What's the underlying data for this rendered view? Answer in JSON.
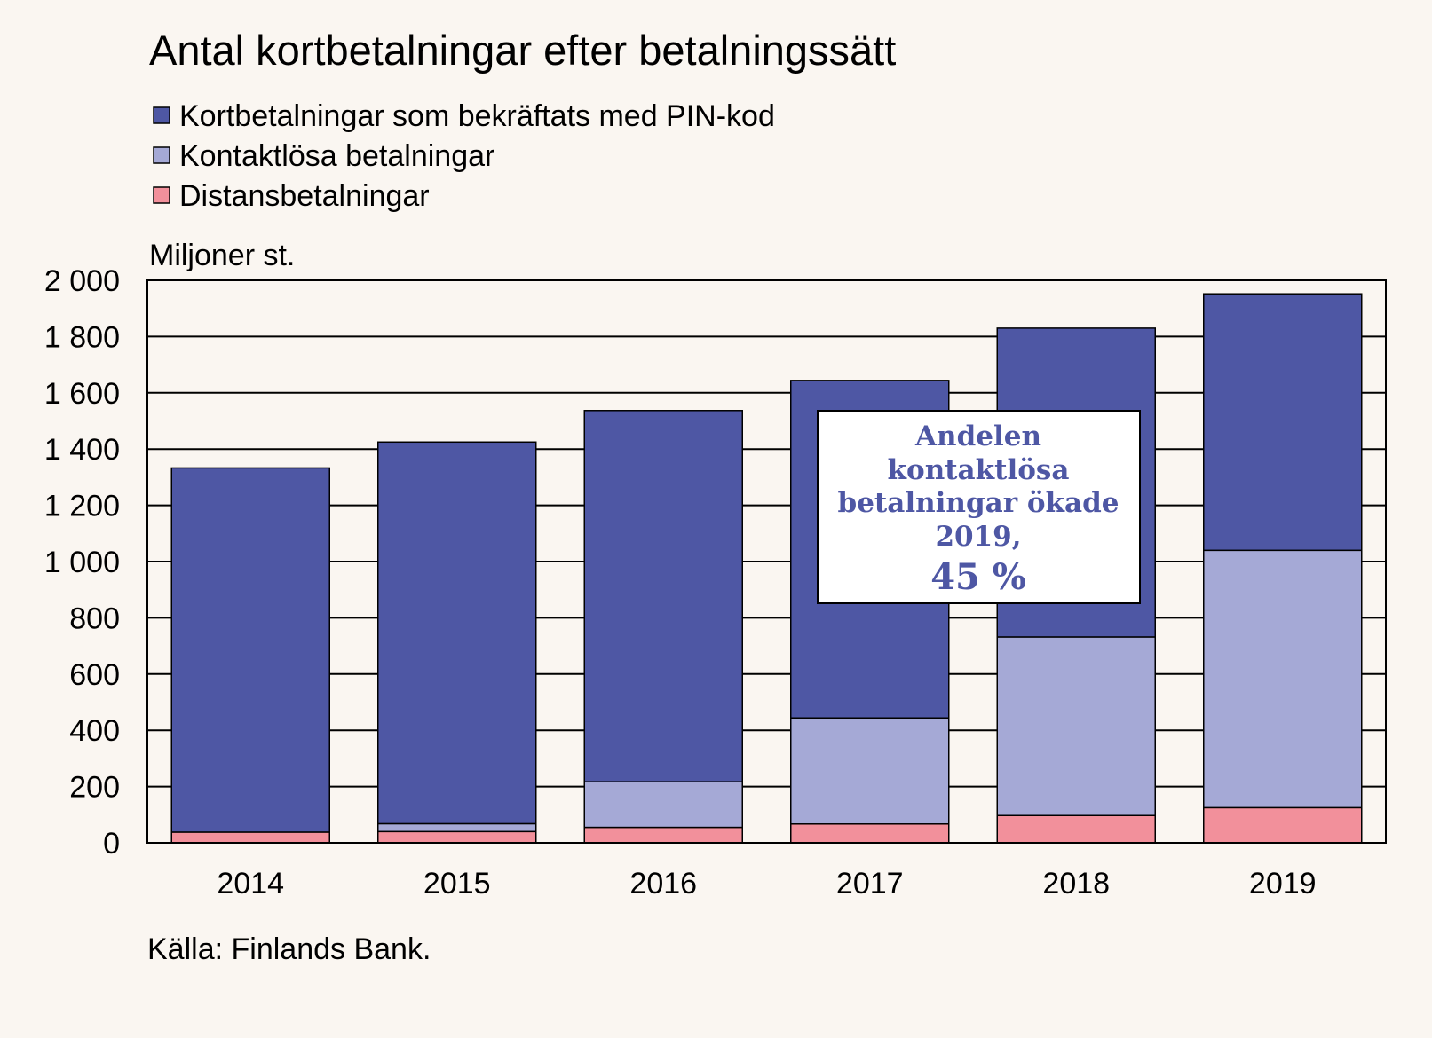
{
  "title": "Antal kortbetalningar efter betalningssätt",
  "unit_label": "Miljoner st.",
  "source": "Källa: Finlands Bank.",
  "colors": {
    "pin": "#4e57a4",
    "contactless": "#a5a9d6",
    "distance": "#f2909b",
    "background": "#faf6f1"
  },
  "chart_data": {
    "type": "bar",
    "stacked": true,
    "title": "Antal kortbetalningar efter betalningssätt",
    "ylabel": "Miljoner st.",
    "xlabel": "",
    "categories": [
      "2014",
      "2015",
      "2016",
      "2017",
      "2018",
      "2019"
    ],
    "series": [
      {
        "name": "Distansbetalningar",
        "color": "#f2909b",
        "values": [
          38,
          40,
          55,
          67,
          97,
          125
        ]
      },
      {
        "name": "Kontaktlösa betalningar",
        "color": "#a5a9d6",
        "values": [
          0,
          28,
          162,
          377,
          635,
          915
        ]
      },
      {
        "name": "Kortbetalningar som bekräftats med PIN-kod",
        "color": "#4e57a4",
        "values": [
          1295,
          1357,
          1320,
          1200,
          1098,
          912
        ]
      }
    ],
    "legend_order": [
      "Kortbetalningar som bekräftats med PIN-kod",
      "Kontaktlösa betalningar",
      "Distansbetalningar"
    ],
    "ylim": [
      0,
      2000
    ],
    "yticks": [
      0,
      200,
      400,
      600,
      800,
      1000,
      1200,
      1400,
      1600,
      1800,
      2000
    ],
    "ytick_labels": [
      "0",
      "200",
      "400",
      "600",
      "800",
      "1 000",
      "1 200",
      "1 400",
      "1 600",
      "1 800",
      "2 000"
    ],
    "grid": true,
    "legend_position": "top",
    "annotation": {
      "lines": [
        "Andelen",
        "kontaktlösa",
        "betalningar ökade",
        "2019,"
      ],
      "highlight": "45 %"
    }
  }
}
